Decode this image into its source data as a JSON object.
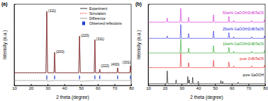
{
  "chart_data": [
    {
      "type": "line",
      "title": "(a)",
      "x_label": "2 theta (degree)",
      "y_label": "Intensity (a.u.)",
      "xlim": [
        10,
        80
      ],
      "xticks": [
        10,
        20,
        30,
        40,
        50,
        60,
        70,
        80
      ],
      "ylim": [
        -15,
        100
      ],
      "tick_labels": "x",
      "legend": "upper right",
      "series": [
        {
          "name": "Experiment",
          "color": "#000000",
          "line_style": "solid",
          "x": [
            10,
            29.0,
            29.5,
            30.0,
            33.8,
            34.2,
            34.6,
            48.6,
            49.1,
            49.6,
            57.9,
            58.3,
            58.7,
            60.9,
            61.2,
            61.5,
            71.5,
            71.9,
            72.3,
            79.2,
            79.6,
            80
          ],
          "values": [
            3,
            3,
            90,
            3,
            3,
            32,
            3,
            3,
            55,
            3,
            3,
            50,
            3,
            3,
            8,
            3,
            3,
            10,
            3,
            3,
            13,
            3
          ]
        },
        {
          "name": "Simulation",
          "color": "#e41a1c",
          "line_style": "dashed",
          "x": [
            10,
            29.0,
            29.5,
            30.0,
            33.8,
            34.2,
            34.6,
            48.6,
            49.1,
            49.6,
            57.9,
            58.3,
            58.7,
            60.9,
            61.2,
            61.5,
            71.5,
            71.9,
            72.3,
            79.2,
            79.6,
            80
          ],
          "values": [
            3,
            3,
            89,
            3,
            3,
            31,
            3,
            3,
            54,
            3,
            3,
            49,
            3,
            3,
            8,
            3,
            3,
            10,
            3,
            3,
            12,
            3
          ]
        },
        {
          "name": "Difference",
          "color": "#808080",
          "line_style": "solid",
          "x": [
            10,
            29.0,
            29.5,
            30.0,
            33.8,
            34.2,
            34.6,
            48.6,
            49.1,
            49.6,
            57.9,
            58.3,
            58.7,
            60.9,
            61.2,
            61.5,
            71.5,
            71.9,
            72.3,
            79.2,
            79.6,
            80
          ],
          "values": [
            -8,
            -8,
            -6,
            -9,
            -8,
            -7,
            -8,
            -8,
            -7,
            -9,
            -8,
            -7,
            -8,
            -8,
            -8,
            -8,
            -8,
            -8,
            -8,
            -8,
            -7,
            -8
          ]
        },
        {
          "name": "Observed reflections",
          "type": "vline",
          "color": "#1c3fd0",
          "x": [
            29.5,
            34.2,
            49.1,
            58.3,
            61.2,
            71.9,
            79.6
          ]
        }
      ],
      "annotations": [
        {
          "text": "(111)",
          "x": 30.4,
          "y": 88
        },
        {
          "text": "(200)",
          "x": 35.0,
          "y": 30
        },
        {
          "text": "(220)",
          "x": 49.9,
          "y": 53
        },
        {
          "text": "(311)",
          "x": 59.1,
          "y": 48
        },
        {
          "text": "(222)",
          "x": 61.9,
          "y": 10
        },
        {
          "text": "(400)",
          "x": 68.0,
          "y": 12
        },
        {
          "text": "(331)",
          "x": 74.8,
          "y": 15
        }
      ]
    },
    {
      "type": "line",
      "title": "(b)",
      "x_label": "2 theta (degree)",
      "y_label": "Intensity (a.u.)",
      "xlim": [
        10,
        80
      ],
      "xticks": [
        10,
        20,
        30,
        40,
        50,
        60,
        70,
        80
      ],
      "ylim": [
        0,
        100
      ],
      "tick_labels": "x",
      "series": [
        {
          "name": "pure GaOOH",
          "color": "#000000",
          "x": [
            10,
            21.0,
            21.4,
            21.8,
            26.4,
            26.7,
            27.0,
            33.4,
            33.7,
            34.0,
            34.3,
            34.6,
            34.9,
            36.3,
            36.6,
            36.9,
            39.7,
            40.0,
            40.3,
            53.2,
            53.5,
            53.8,
            54.3,
            54.6,
            54.9,
            63.5,
            63.8,
            64.1,
            80
          ],
          "values": [
            2,
            2,
            18,
            2,
            2,
            7,
            2,
            2,
            11,
            3,
            3,
            7,
            2,
            2,
            10,
            2,
            2,
            5,
            2,
            2,
            6,
            2,
            2,
            5,
            2,
            2,
            4,
            2,
            2
          ]
        },
        {
          "name": "pure ZnBiTaO5",
          "color": "#e41a1c",
          "x": [
            10,
            29.1,
            29.5,
            29.9,
            33.8,
            34.2,
            34.6,
            48.7,
            49.1,
            49.5,
            57.9,
            58.3,
            58.7,
            60.9,
            61.2,
            61.5,
            71.5,
            71.9,
            72.3,
            79.2,
            79.6,
            80
          ],
          "values": [
            22,
            22,
            40,
            22,
            22,
            28,
            22,
            22,
            31,
            22,
            22,
            29,
            22,
            22,
            24,
            22,
            22,
            24,
            22,
            22,
            25,
            22
          ]
        },
        {
          "name": "10wt% GaOOH/ZnBiTaO5",
          "color": "#22a022",
          "x": [
            10,
            29.1,
            29.5,
            29.9,
            33.8,
            34.2,
            34.6,
            48.7,
            49.1,
            49.5,
            57.9,
            58.3,
            58.7,
            60.9,
            61.2,
            61.5,
            71.5,
            71.9,
            72.3,
            79.2,
            79.6,
            80
          ],
          "values": [
            40,
            40,
            57,
            40,
            40,
            46,
            40,
            40,
            49,
            40,
            40,
            47,
            40,
            40,
            42,
            40,
            40,
            42,
            40,
            40,
            43,
            40
          ]
        },
        {
          "name": "25wt% GaOOH/ZnBiTaO5",
          "color": "#2222dd",
          "x": [
            10,
            21.0,
            21.4,
            21.8,
            29.1,
            29.5,
            29.9,
            33.8,
            34.2,
            34.6,
            48.7,
            49.1,
            49.5,
            57.9,
            58.3,
            58.7,
            60.9,
            61.2,
            61.5,
            71.5,
            71.9,
            72.3,
            79.2,
            79.6,
            80
          ],
          "values": [
            58,
            58,
            61,
            58,
            58,
            75,
            58,
            58,
            64,
            58,
            58,
            67,
            58,
            58,
            65,
            58,
            58,
            60,
            58,
            58,
            60,
            58,
            58,
            61,
            58
          ]
        },
        {
          "name": "50wt% GaOOH/ZnBiTaO5",
          "color": "#d020d0",
          "x": [
            10,
            21.0,
            21.4,
            21.8,
            29.1,
            29.5,
            29.9,
            33.8,
            34.2,
            34.6,
            48.7,
            49.1,
            49.5,
            57.9,
            58.3,
            58.7,
            60.9,
            61.2,
            61.5,
            71.5,
            71.9,
            72.3,
            79.2,
            79.6,
            80
          ],
          "values": [
            78,
            78,
            83,
            78,
            78,
            95,
            78,
            78,
            84,
            78,
            78,
            87,
            78,
            78,
            85,
            78,
            78,
            80,
            78,
            78,
            80,
            78,
            78,
            81,
            78
          ]
        }
      ]
    }
  ]
}
